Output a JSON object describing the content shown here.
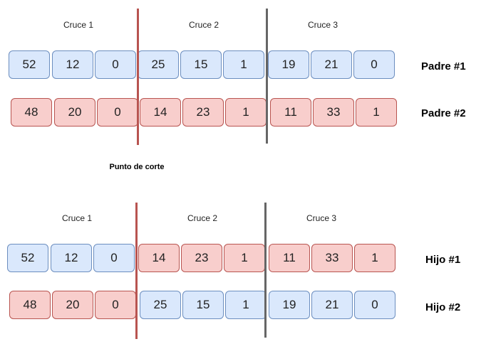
{
  "segments": [
    "Cruce 1",
    "Cruce 2",
    "Cruce 3"
  ],
  "cut_point_label": "Punto de corte",
  "rows": {
    "parent1": {
      "label": "Padre #1",
      "values": [
        "52",
        "12",
        "0",
        "25",
        "15",
        "1",
        "19",
        "21",
        "0"
      ],
      "colors": [
        "blue",
        "blue",
        "blue",
        "blue",
        "blue",
        "blue",
        "blue",
        "blue",
        "blue"
      ]
    },
    "parent2": {
      "label": "Padre #2",
      "values": [
        "48",
        "20",
        "0",
        "14",
        "23",
        "1",
        "11",
        "33",
        "1"
      ],
      "colors": [
        "red",
        "red",
        "red",
        "red",
        "red",
        "red",
        "red",
        "red",
        "red"
      ]
    },
    "child1": {
      "label": "Hijo #1",
      "values": [
        "52",
        "12",
        "0",
        "14",
        "23",
        "1",
        "11",
        "33",
        "1"
      ],
      "colors": [
        "blue",
        "blue",
        "blue",
        "red",
        "red",
        "red",
        "red",
        "red",
        "red"
      ]
    },
    "child2": {
      "label": "Hijo #2",
      "values": [
        "48",
        "20",
        "0",
        "25",
        "15",
        "1",
        "19",
        "21",
        "0"
      ],
      "colors": [
        "red",
        "red",
        "red",
        "blue",
        "blue",
        "blue",
        "blue",
        "blue",
        "blue"
      ]
    }
  },
  "colors": {
    "blue_fill": "#dae8fc",
    "blue_border": "#6c8ebf",
    "red_fill": "#f8cecc",
    "red_border": "#b85450",
    "cut_line_1": "#b85450",
    "cut_line_2": "#666666"
  }
}
